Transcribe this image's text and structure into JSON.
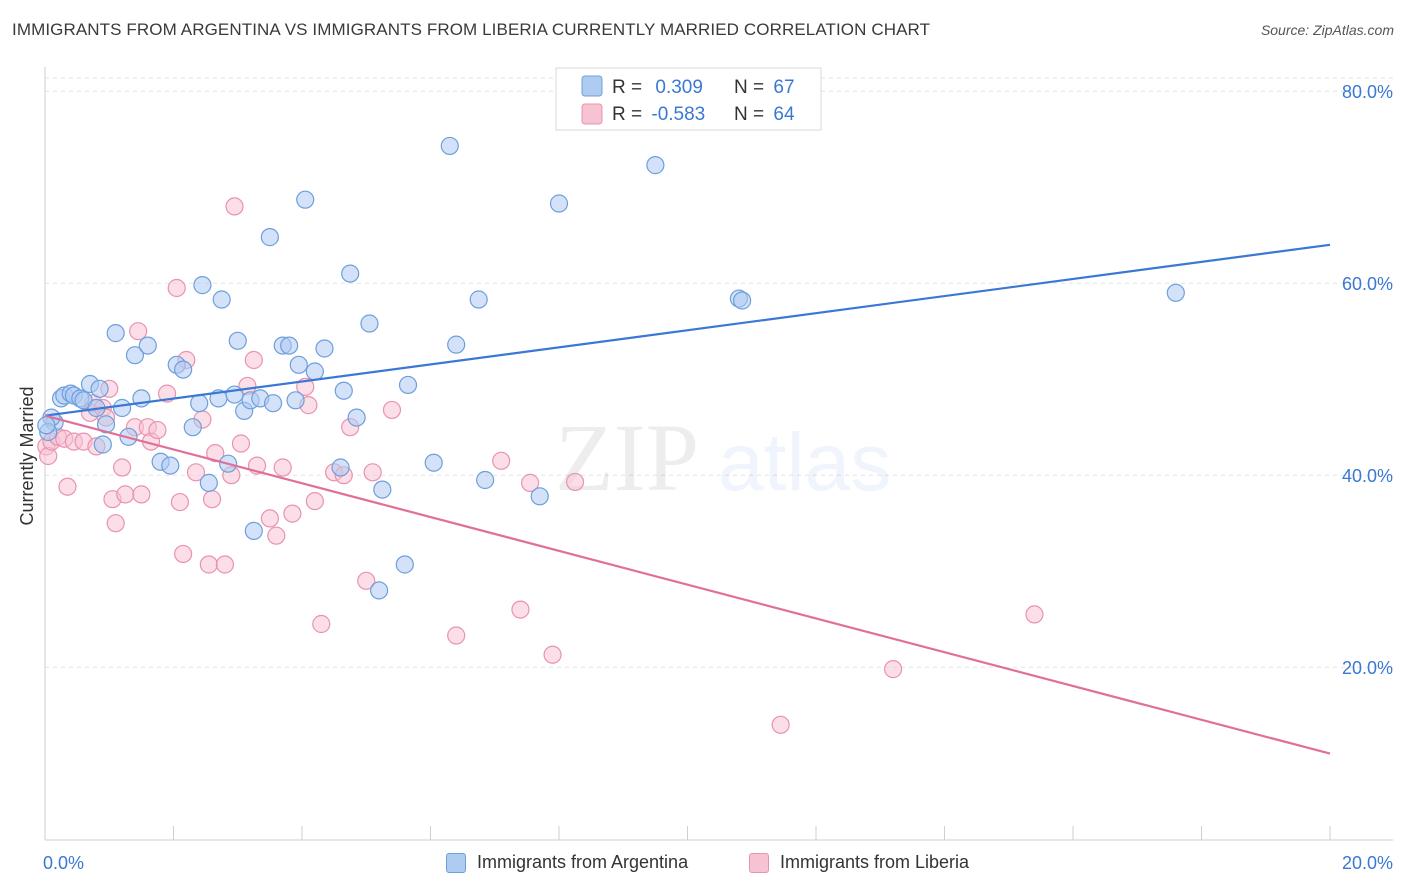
{
  "header": {
    "title": "IMMIGRANTS FROM ARGENTINA VS IMMIGRANTS FROM LIBERIA CURRENTLY MARRIED CORRELATION CHART",
    "source": "Source: ZipAtlas.com"
  },
  "watermark": {
    "part1": "ZIP",
    "part2": "atlas"
  },
  "colors": {
    "argentina_fill": "#aecbf2",
    "argentina_stroke": "#6e9fdc",
    "argentina_line": "#3a78d4",
    "liberia_fill": "#f7c3d3",
    "liberia_stroke": "#e893b0",
    "liberia_line": "#e0709a",
    "value_text": "#3a78d4",
    "grid": "#e3e3e3"
  },
  "stats_legend": {
    "rows": [
      {
        "r_label": "R = ",
        "r_value": "0.309",
        "n_label": "N = ",
        "n_value": "67"
      },
      {
        "r_label": "R = ",
        "r_value": "-0.583",
        "n_label": "N = ",
        "n_value": "64"
      }
    ]
  },
  "chart_data": {
    "type": "scatter",
    "title": "IMMIGRANTS FROM ARGENTINA VS IMMIGRANTS FROM LIBERIA CURRENTLY MARRIED CORRELATION CHART",
    "xlabel": "",
    "ylabel": "Currently Married",
    "xlim": [
      0,
      20
    ],
    "ylim": [
      2,
      82
    ],
    "x_tick_labels": [
      "0.0%",
      "20.0%"
    ],
    "y_ticks": [
      20,
      40,
      60,
      80
    ],
    "y_tick_labels": [
      "20.0%",
      "40.0%",
      "60.0%",
      "80.0%"
    ],
    "grid": true,
    "legend_position": "bottom",
    "series": [
      {
        "name": "Immigrants from Argentina",
        "r": 0.309,
        "n": 67,
        "trend": {
          "x": [
            0,
            20
          ],
          "y": [
            46.2,
            64.0
          ]
        },
        "points": [
          [
            0.15,
            45.5
          ],
          [
            0.25,
            48.0
          ],
          [
            0.3,
            48.3
          ],
          [
            0.4,
            48.5
          ],
          [
            0.45,
            48.3
          ],
          [
            0.55,
            48.0
          ],
          [
            0.6,
            47.8
          ],
          [
            0.7,
            49.5
          ],
          [
            0.8,
            47.0
          ],
          [
            0.85,
            49.0
          ],
          [
            0.9,
            43.2
          ],
          [
            0.95,
            45.3
          ],
          [
            1.1,
            54.8
          ],
          [
            1.2,
            47.0
          ],
          [
            1.3,
            44.0
          ],
          [
            1.4,
            52.5
          ],
          [
            1.5,
            48.0
          ],
          [
            1.6,
            53.5
          ],
          [
            1.8,
            41.4
          ],
          [
            1.95,
            41.0
          ],
          [
            2.05,
            51.5
          ],
          [
            2.15,
            51.0
          ],
          [
            2.3,
            45.0
          ],
          [
            2.4,
            47.5
          ],
          [
            2.45,
            59.8
          ],
          [
            2.55,
            39.2
          ],
          [
            2.7,
            48.0
          ],
          [
            2.75,
            58.3
          ],
          [
            2.85,
            41.2
          ],
          [
            2.95,
            48.4
          ],
          [
            3.0,
            54.0
          ],
          [
            3.1,
            46.7
          ],
          [
            3.2,
            47.8
          ],
          [
            3.25,
            34.2
          ],
          [
            3.35,
            48.0
          ],
          [
            3.5,
            64.8
          ],
          [
            3.55,
            47.5
          ],
          [
            3.7,
            53.5
          ],
          [
            3.8,
            53.5
          ],
          [
            3.9,
            47.8
          ],
          [
            3.95,
            51.5
          ],
          [
            4.05,
            68.7
          ],
          [
            4.2,
            50.8
          ],
          [
            4.35,
            53.2
          ],
          [
            4.6,
            40.8
          ],
          [
            4.65,
            48.8
          ],
          [
            4.75,
            61.0
          ],
          [
            4.85,
            46.0
          ],
          [
            5.05,
            55.8
          ],
          [
            5.2,
            28.0
          ],
          [
            5.25,
            38.5
          ],
          [
            5.6,
            30.7
          ],
          [
            5.65,
            49.4
          ],
          [
            6.05,
            41.3
          ],
          [
            6.3,
            74.3
          ],
          [
            6.4,
            53.6
          ],
          [
            6.75,
            58.3
          ],
          [
            6.85,
            39.5
          ],
          [
            7.7,
            37.8
          ],
          [
            8.0,
            68.3
          ],
          [
            9.5,
            72.3
          ],
          [
            10.8,
            58.4
          ],
          [
            10.85,
            58.2
          ],
          [
            17.6,
            59.0
          ],
          [
            0.1,
            46.0
          ],
          [
            0.05,
            44.5
          ],
          [
            0.02,
            45.2
          ]
        ]
      },
      {
        "name": "Immigrants from Liberia",
        "r": -0.583,
        "n": 64,
        "trend": {
          "x": [
            0,
            20
          ],
          "y": [
            46.2,
            11.0
          ]
        },
        "points": [
          [
            0.02,
            43.0
          ],
          [
            0.05,
            42.0
          ],
          [
            0.1,
            43.5
          ],
          [
            0.2,
            44.0
          ],
          [
            0.3,
            43.8
          ],
          [
            0.35,
            38.8
          ],
          [
            0.45,
            43.5
          ],
          [
            0.6,
            43.5
          ],
          [
            0.7,
            46.5
          ],
          [
            0.75,
            47.5
          ],
          [
            0.8,
            43.0
          ],
          [
            0.9,
            47.0
          ],
          [
            0.95,
            46.0
          ],
          [
            1.0,
            49.0
          ],
          [
            1.05,
            37.5
          ],
          [
            1.1,
            35.0
          ],
          [
            1.2,
            40.8
          ],
          [
            1.25,
            38.0
          ],
          [
            1.4,
            45.0
          ],
          [
            1.45,
            55.0
          ],
          [
            1.5,
            38.0
          ],
          [
            1.6,
            45.0
          ],
          [
            1.65,
            43.5
          ],
          [
            1.75,
            44.7
          ],
          [
            1.9,
            48.5
          ],
          [
            2.05,
            59.5
          ],
          [
            2.1,
            37.2
          ],
          [
            2.15,
            31.8
          ],
          [
            2.2,
            52.0
          ],
          [
            2.35,
            40.3
          ],
          [
            2.45,
            45.8
          ],
          [
            2.55,
            30.7
          ],
          [
            2.6,
            37.5
          ],
          [
            2.65,
            42.3
          ],
          [
            2.8,
            30.7
          ],
          [
            2.9,
            40.0
          ],
          [
            2.95,
            68.0
          ],
          [
            3.05,
            43.3
          ],
          [
            3.15,
            49.3
          ],
          [
            3.25,
            52.0
          ],
          [
            3.3,
            41.0
          ],
          [
            3.5,
            35.5
          ],
          [
            3.6,
            33.7
          ],
          [
            3.7,
            40.8
          ],
          [
            3.85,
            36.0
          ],
          [
            4.05,
            49.2
          ],
          [
            4.1,
            47.3
          ],
          [
            4.2,
            37.3
          ],
          [
            4.3,
            24.5
          ],
          [
            4.5,
            40.3
          ],
          [
            4.65,
            40.0
          ],
          [
            4.75,
            45.0
          ],
          [
            5.0,
            29.0
          ],
          [
            5.1,
            40.3
          ],
          [
            5.4,
            46.8
          ],
          [
            6.4,
            23.3
          ],
          [
            7.1,
            41.5
          ],
          [
            7.4,
            26.0
          ],
          [
            7.55,
            39.2
          ],
          [
            7.9,
            21.3
          ],
          [
            8.25,
            39.3
          ],
          [
            11.45,
            14.0
          ],
          [
            13.2,
            19.8
          ],
          [
            15.4,
            25.5
          ]
        ]
      }
    ]
  },
  "legend_bottom": {
    "items": [
      {
        "label": "Immigrants from Argentina"
      },
      {
        "label": "Immigrants from Liberia"
      }
    ]
  }
}
